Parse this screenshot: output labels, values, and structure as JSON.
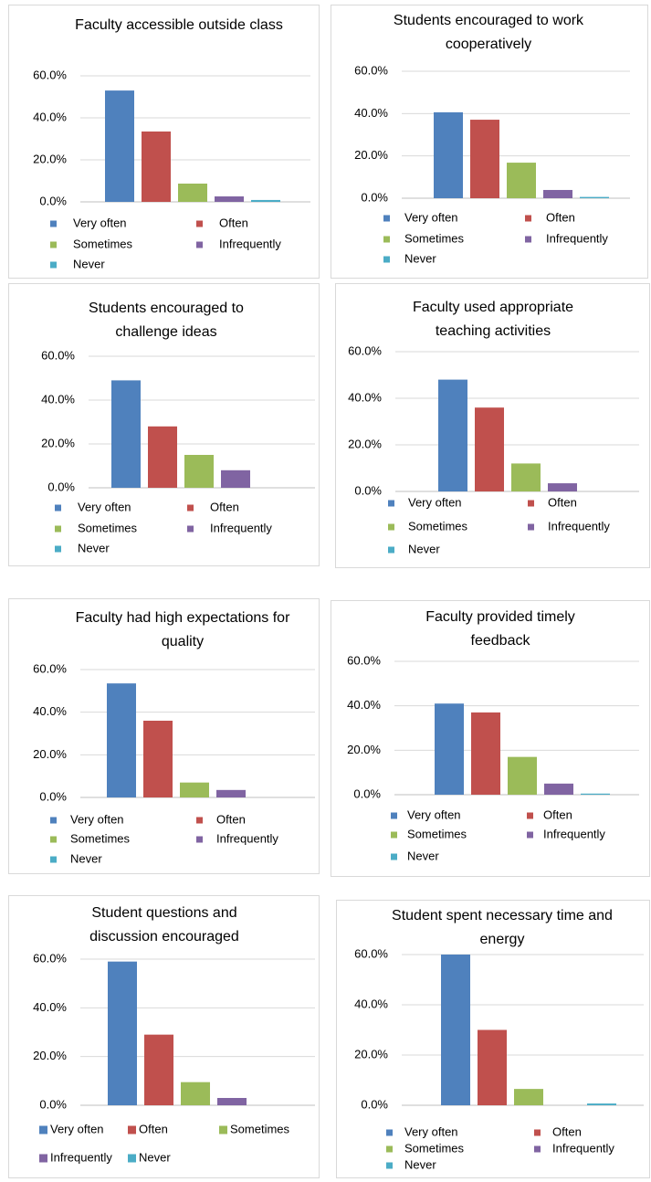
{
  "chart_data": [
    {
      "type": "bar",
      "title": "Faculty accessible outside class",
      "categories": [
        "Very often",
        "Often",
        "Sometimes",
        "Infrequently",
        "Never"
      ],
      "values": [
        53,
        33.5,
        8.7,
        2.6,
        0.9
      ],
      "colors": [
        "#4f81bd",
        "#c0504d",
        "#9bbb59",
        "#8064a2",
        "#4bacc6"
      ],
      "ylim": [
        0,
        60
      ],
      "yticks": [
        {
          "value": 0,
          "label": "0.0%"
        },
        {
          "value": 20,
          "label": "20.0%"
        },
        {
          "value": 40,
          "label": "40.0%"
        },
        {
          "value": 60,
          "label": "60.0%"
        }
      ],
      "grid": true
    },
    {
      "type": "bar",
      "title": "Students encouraged to work cooperatively",
      "categories": [
        "Very often",
        "Often",
        "Sometimes",
        "Infrequently",
        "Never"
      ],
      "values": [
        40.6,
        37.1,
        16.8,
        3.9,
        0.6
      ],
      "colors": [
        "#4f81bd",
        "#c0504d",
        "#9bbb59",
        "#8064a2",
        "#4bacc6"
      ],
      "ylim": [
        0,
        60
      ],
      "yticks": [
        {
          "value": 0,
          "label": "0.0%"
        },
        {
          "value": 20,
          "label": "20.0%"
        },
        {
          "value": 40,
          "label": "40.0%"
        },
        {
          "value": 60,
          "label": "60.0%"
        }
      ],
      "grid": true
    },
    {
      "type": "bar",
      "title": "Students encouraged to challenge ideas",
      "categories": [
        "Very often",
        "Often",
        "Sometimes",
        "Infrequently",
        "Never"
      ],
      "values": [
        49,
        28,
        15,
        8,
        0
      ],
      "colors": [
        "#4f81bd",
        "#c0504d",
        "#9bbb59",
        "#8064a2",
        "#4bacc6"
      ],
      "ylim": [
        0,
        60
      ],
      "yticks": [
        {
          "value": 0,
          "label": "0.0%"
        },
        {
          "value": 20,
          "label": "20.0%"
        },
        {
          "value": 40,
          "label": "40.0%"
        },
        {
          "value": 60,
          "label": "60.0%"
        }
      ],
      "grid": true
    },
    {
      "type": "bar",
      "title": "Faculty used appropriate teaching activities",
      "categories": [
        "Very often",
        "Often",
        "Sometimes",
        "Infrequently",
        "Never"
      ],
      "values": [
        48,
        36,
        12,
        3.5,
        0
      ],
      "colors": [
        "#4f81bd",
        "#c0504d",
        "#9bbb59",
        "#8064a2",
        "#4bacc6"
      ],
      "ylim": [
        0,
        60
      ],
      "yticks": [
        {
          "value": 0,
          "label": "0.0%"
        },
        {
          "value": 20,
          "label": "20.0%"
        },
        {
          "value": 40,
          "label": "40.0%"
        },
        {
          "value": 60,
          "label": "60.0%"
        }
      ],
      "grid": true
    },
    {
      "type": "bar",
      "title": "Faculty had high expectations for quality",
      "categories": [
        "Very often",
        "Often",
        "Sometimes",
        "Infrequently",
        "Never"
      ],
      "values": [
        53.5,
        36,
        7,
        3.5,
        0
      ],
      "colors": [
        "#4f81bd",
        "#c0504d",
        "#9bbb59",
        "#8064a2",
        "#4bacc6"
      ],
      "ylim": [
        0,
        60
      ],
      "yticks": [
        {
          "value": 0,
          "label": "0.0%"
        },
        {
          "value": 20,
          "label": "20.0%"
        },
        {
          "value": 40,
          "label": "40.0%"
        },
        {
          "value": 60,
          "label": "60.0%"
        }
      ],
      "grid": true
    },
    {
      "type": "bar",
      "title": "Faculty provided timely feedback",
      "categories": [
        "Very often",
        "Often",
        "Sometimes",
        "Infrequently",
        "Never"
      ],
      "values": [
        41,
        37,
        17,
        5,
        0.5
      ],
      "colors": [
        "#4f81bd",
        "#c0504d",
        "#9bbb59",
        "#8064a2",
        "#4bacc6"
      ],
      "ylim": [
        0,
        60
      ],
      "yticks": [
        {
          "value": 0,
          "label": "0.0%"
        },
        {
          "value": 20,
          "label": "20.0%"
        },
        {
          "value": 40,
          "label": "40.0%"
        },
        {
          "value": 60,
          "label": "60.0%"
        }
      ],
      "grid": true
    },
    {
      "type": "bar",
      "title": "Student questions and discussion encouraged",
      "categories": [
        "Very often",
        "Often",
        "Sometimes",
        "Infrequently",
        "Never"
      ],
      "values": [
        59,
        29,
        9.5,
        3,
        0
      ],
      "colors": [
        "#4f81bd",
        "#c0504d",
        "#9bbb59",
        "#8064a2",
        "#4bacc6"
      ],
      "ylim": [
        0,
        60
      ],
      "yticks": [
        {
          "value": 0,
          "label": "0.0%"
        },
        {
          "value": 20,
          "label": "20.0%"
        },
        {
          "value": 40,
          "label": "40.0%"
        },
        {
          "value": 60,
          "label": "60.0%"
        }
      ],
      "grid": true
    },
    {
      "type": "bar",
      "title": "Student spent necessary time and energy",
      "categories": [
        "Very often",
        "Often",
        "Sometimes",
        "Infrequently",
        "Never"
      ],
      "values": [
        60,
        30,
        6.5,
        0,
        0.7
      ],
      "colors": [
        "#4f81bd",
        "#c0504d",
        "#9bbb59",
        "#8064a2",
        "#4bacc6"
      ],
      "ylim": [
        0,
        60
      ],
      "yticks": [
        {
          "value": 0,
          "label": "0.0%"
        },
        {
          "value": 20,
          "label": "20.0%"
        },
        {
          "value": 40,
          "label": "40.0%"
        },
        {
          "value": 60,
          "label": "60.0%"
        }
      ],
      "grid": true
    }
  ]
}
